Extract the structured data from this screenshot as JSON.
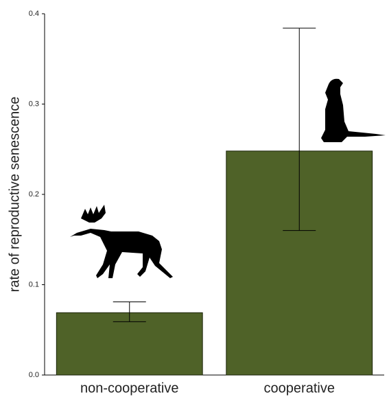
{
  "chart_data": {
    "type": "bar",
    "y_label": "rate of reproductive senescence",
    "categories": [
      "non-cooperative",
      "cooperative"
    ],
    "values": [
      0.069,
      0.248
    ],
    "ci_low": [
      0.059,
      0.16
    ],
    "ci_high": [
      0.081,
      0.384
    ],
    "color": "#4f6228",
    "ylim": [
      0,
      0.4
    ],
    "yticks": [
      {
        "value": 0,
        "label": "0.0"
      },
      0.1,
      0.2,
      0.3,
      0.4
    ]
  }
}
